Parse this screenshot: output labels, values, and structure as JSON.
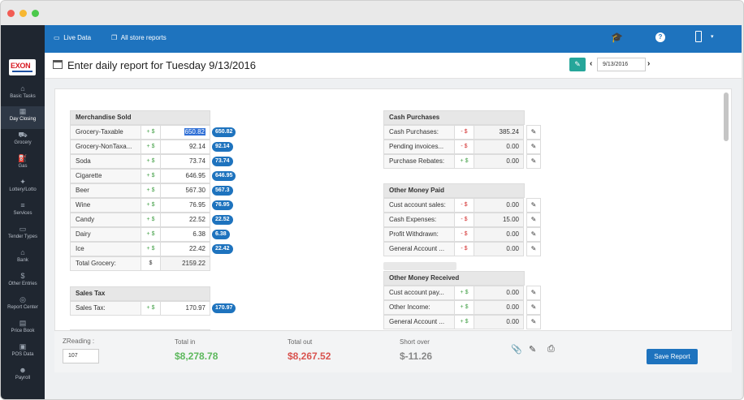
{
  "sidebar": {
    "logo_text": "EXON",
    "items": [
      {
        "label": "Basic Tasks",
        "icon": "home-icon"
      },
      {
        "label": "Day Closing",
        "icon": "calendar-icon"
      },
      {
        "label": "Grocery",
        "icon": "cart-icon"
      },
      {
        "label": "Gas",
        "icon": "gas-pump-icon"
      },
      {
        "label": "Lottery/Lotto",
        "icon": "ticket-icon"
      },
      {
        "label": "Services",
        "icon": "layers-icon"
      },
      {
        "label": "Tender Types",
        "icon": "card-icon"
      },
      {
        "label": "Bank",
        "icon": "bank-icon"
      },
      {
        "label": "Other Entries",
        "icon": "dollar-icon"
      },
      {
        "label": "Report Center",
        "icon": "report-icon"
      },
      {
        "label": "Price Book",
        "icon": "book-icon"
      },
      {
        "label": "POS Data",
        "icon": "pos-icon"
      },
      {
        "label": "Payroll",
        "icon": "people-icon"
      }
    ]
  },
  "topbar": {
    "live_data": "Live Data",
    "all_store_reports": "All store reports"
  },
  "header": {
    "title": "Enter daily report for Tuesday 9/13/2016",
    "date_value": "9/13/2016"
  },
  "merchandise": {
    "title": "Merchandise Sold",
    "rows": [
      {
        "label": "Grocery-Taxable",
        "sign": "+ $",
        "value": "650.82",
        "badge": "650.82"
      },
      {
        "label": "Grocery-NonTaxa...",
        "sign": "+ $",
        "value": "92.14",
        "badge": "92.14"
      },
      {
        "label": "Soda",
        "sign": "+ $",
        "value": "73.74",
        "badge": "73.74"
      },
      {
        "label": "Cigarette",
        "sign": "+ $",
        "value": "646.95",
        "badge": "646.95"
      },
      {
        "label": "Beer",
        "sign": "+ $",
        "value": "567.30",
        "badge": "567.3"
      },
      {
        "label": "Wine",
        "sign": "+ $",
        "value": "76.95",
        "badge": "76.95"
      },
      {
        "label": "Candy",
        "sign": "+ $",
        "value": "22.52",
        "badge": "22.52"
      },
      {
        "label": "Dairy",
        "sign": "+ $",
        "value": "6.38",
        "badge": "6.38"
      },
      {
        "label": "Ice",
        "sign": "+ $",
        "value": "22.42",
        "badge": "22.42"
      }
    ],
    "total_label": "Total Grocery:",
    "total_sign": "$",
    "total_value": "2159.22"
  },
  "sales_tax": {
    "title": "Sales Tax",
    "label": "Sales Tax:",
    "sign": "+ $",
    "value": "170.97",
    "badge": "170.97"
  },
  "cash_purchases": {
    "title": "Cash Purchases",
    "rows": [
      {
        "label": "Cash Purchases:",
        "sign": "- $",
        "value": "385.24"
      },
      {
        "label": "Pending invoices...",
        "sign": "- $",
        "value": "0.00"
      },
      {
        "label": "Purchase Rebates:",
        "sign": "+ $",
        "value": "0.00"
      }
    ]
  },
  "other_money_paid": {
    "title": "Other Money Paid",
    "rows": [
      {
        "label": "Cust account sales:",
        "sign": "- $",
        "value": "0.00"
      },
      {
        "label": "Cash Expenses:",
        "sign": "- $",
        "value": "15.00"
      },
      {
        "label": "Profit Withdrawn:",
        "sign": "- $",
        "value": "0.00"
      },
      {
        "label": "General Account ...",
        "sign": "- $",
        "value": "0.00"
      }
    ]
  },
  "other_money_received": {
    "title": "Other Money Received",
    "rows": [
      {
        "label": "Cust account pay...",
        "sign": "+ $",
        "value": "0.00"
      },
      {
        "label": "Other Income:",
        "sign": "+ $",
        "value": "0.00"
      },
      {
        "label": "General Account ...",
        "sign": "+ $",
        "value": "0.00"
      }
    ]
  },
  "footer": {
    "zreading_label": "ZReading :",
    "zreading_value": "107",
    "total_in_label": "Total in",
    "total_in_value": "$8,278.78",
    "total_out_label": "Total out",
    "total_out_value": "$8,267.52",
    "short_over_label": "Short over",
    "short_over_value": "$-11.26",
    "save_label": "Save Report"
  },
  "colors": {
    "topbar": "#1e73be",
    "sidebar": "#1f2630",
    "accent_green": "#26a69a",
    "total_in": "#5cb85c",
    "total_out": "#d9534f",
    "short_over": "#888888",
    "badge": "#1e73be"
  }
}
